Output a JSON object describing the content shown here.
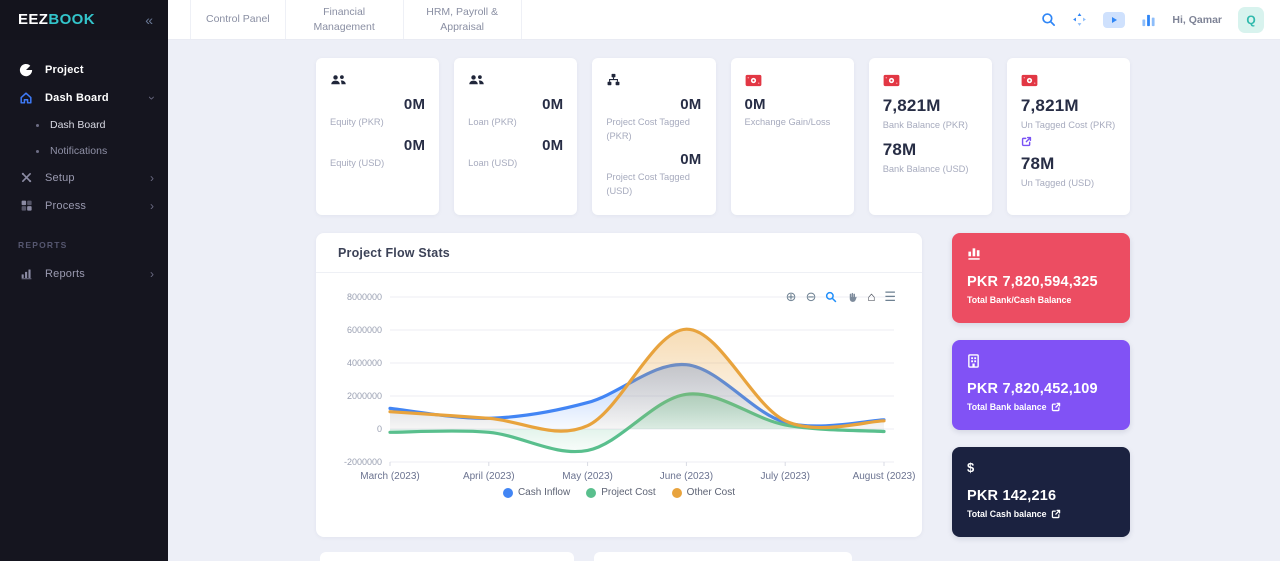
{
  "brand": {
    "primary": "EEZ",
    "secondary": "BOOK"
  },
  "sidebar": {
    "items": [
      {
        "type": "item",
        "icon": "pie-icon",
        "label": "Project",
        "bright": true
      },
      {
        "type": "item",
        "icon": "home-icon",
        "label": "Dash Board",
        "active": true,
        "chevron": "down"
      },
      {
        "type": "subitem",
        "label": "Dash Board",
        "active": true
      },
      {
        "type": "subitem",
        "label": "Notifications"
      },
      {
        "type": "item",
        "icon": "tools-icon",
        "label": "Setup",
        "chevron": "right"
      },
      {
        "type": "item",
        "icon": "process-icon",
        "label": "Process",
        "chevron": "right"
      },
      {
        "type": "section",
        "label": "REPORTS"
      },
      {
        "type": "item",
        "icon": "reports-icon",
        "label": "Reports",
        "chevron": "right"
      }
    ]
  },
  "header": {
    "tabs": [
      {
        "label": "Control Panel"
      },
      {
        "label": "Financial Management"
      },
      {
        "label": "HRM, Payroll & Appraisal"
      }
    ],
    "action_icons": [
      "search-icon",
      "apps-icon",
      "video-icon",
      "stats-icon"
    ],
    "greeting": "Hi, Qamar",
    "avatar_initial": "Q"
  },
  "stat_cards": [
    {
      "icon": "users-icon",
      "value_align": "right",
      "metrics": [
        {
          "value": "0M",
          "label": "Equity (PKR)"
        },
        {
          "value": "0M",
          "label": "Equity (USD)"
        }
      ]
    },
    {
      "icon": "users-icon",
      "value_align": "right",
      "metrics": [
        {
          "value": "0M",
          "label": "Loan (PKR)"
        },
        {
          "value": "0M",
          "label": "Loan (USD)"
        }
      ]
    },
    {
      "icon": "sitemap-icon",
      "value_align": "right",
      "metrics": [
        {
          "value": "0M",
          "label": "Project Cost Tagged (PKR)"
        },
        {
          "value": "0M",
          "label": "Project Cost Tagged (USD)"
        }
      ]
    },
    {
      "icon": "money-icon",
      "value_align": "left",
      "metrics": [
        {
          "value": "0M",
          "label": "Exchange Gain/Loss"
        }
      ]
    },
    {
      "icon": "money-icon",
      "value_align": "left",
      "big": true,
      "metrics": [
        {
          "value": "7,821M",
          "label": "Bank Balance (PKR)"
        },
        {
          "value": "78M",
          "label": "Bank Balance (USD)"
        }
      ]
    },
    {
      "icon": "money-icon",
      "value_align": "left",
      "big": true,
      "metrics": [
        {
          "value": "7,821M",
          "label": "Un Tagged Cost (PKR)",
          "link": true
        },
        {
          "value": "78M",
          "label": "Un Tagged (USD)"
        }
      ]
    }
  ],
  "chart_card": {
    "toolbar": [
      "zoom-in-icon",
      "zoom-out-icon",
      "selection-zoom-icon",
      "pan-icon",
      "reset-home-icon",
      "menu-icon"
    ]
  },
  "chart_data": {
    "type": "area",
    "title": "Project Flow Stats",
    "categories": [
      "March (2023)",
      "April (2023)",
      "May (2023)",
      "June (2023)",
      "July (2023)",
      "August (2023)"
    ],
    "series": [
      {
        "name": "Cash Inflow",
        "color": "#4285F4",
        "values": [
          1250000,
          650000,
          1600000,
          3900000,
          400000,
          550000
        ]
      },
      {
        "name": "Project Cost",
        "color": "#59BF8D",
        "values": [
          -200000,
          -200000,
          -1300000,
          2100000,
          250000,
          -150000
        ]
      },
      {
        "name": "Other Cost",
        "color": "#E8A33D",
        "values": [
          1050000,
          650000,
          200000,
          6050000,
          500000,
          500000
        ]
      }
    ],
    "ylim": [
      -2000000,
      8000000
    ],
    "yticks": [
      "8000000",
      "6000000",
      "4000000",
      "2000000",
      "0",
      "-2000000"
    ],
    "grid": "horizontal",
    "legend_position": "bottom"
  },
  "summary_cards": [
    {
      "bg": "#EC4D62",
      "icon": "chart-underline-icon",
      "value": "PKR 7,820,594,325",
      "label": "Total Bank/Cash Balance",
      "link": false
    },
    {
      "bg": "#8152F5",
      "icon": "bank-icon",
      "value": "PKR 7,820,452,109",
      "label": "Total Bank balance",
      "link": true
    },
    {
      "bg": "#1B2240",
      "icon": "dollar-icon",
      "value": "PKR 142,216",
      "label": "Total Cash balance",
      "link": true
    }
  ]
}
